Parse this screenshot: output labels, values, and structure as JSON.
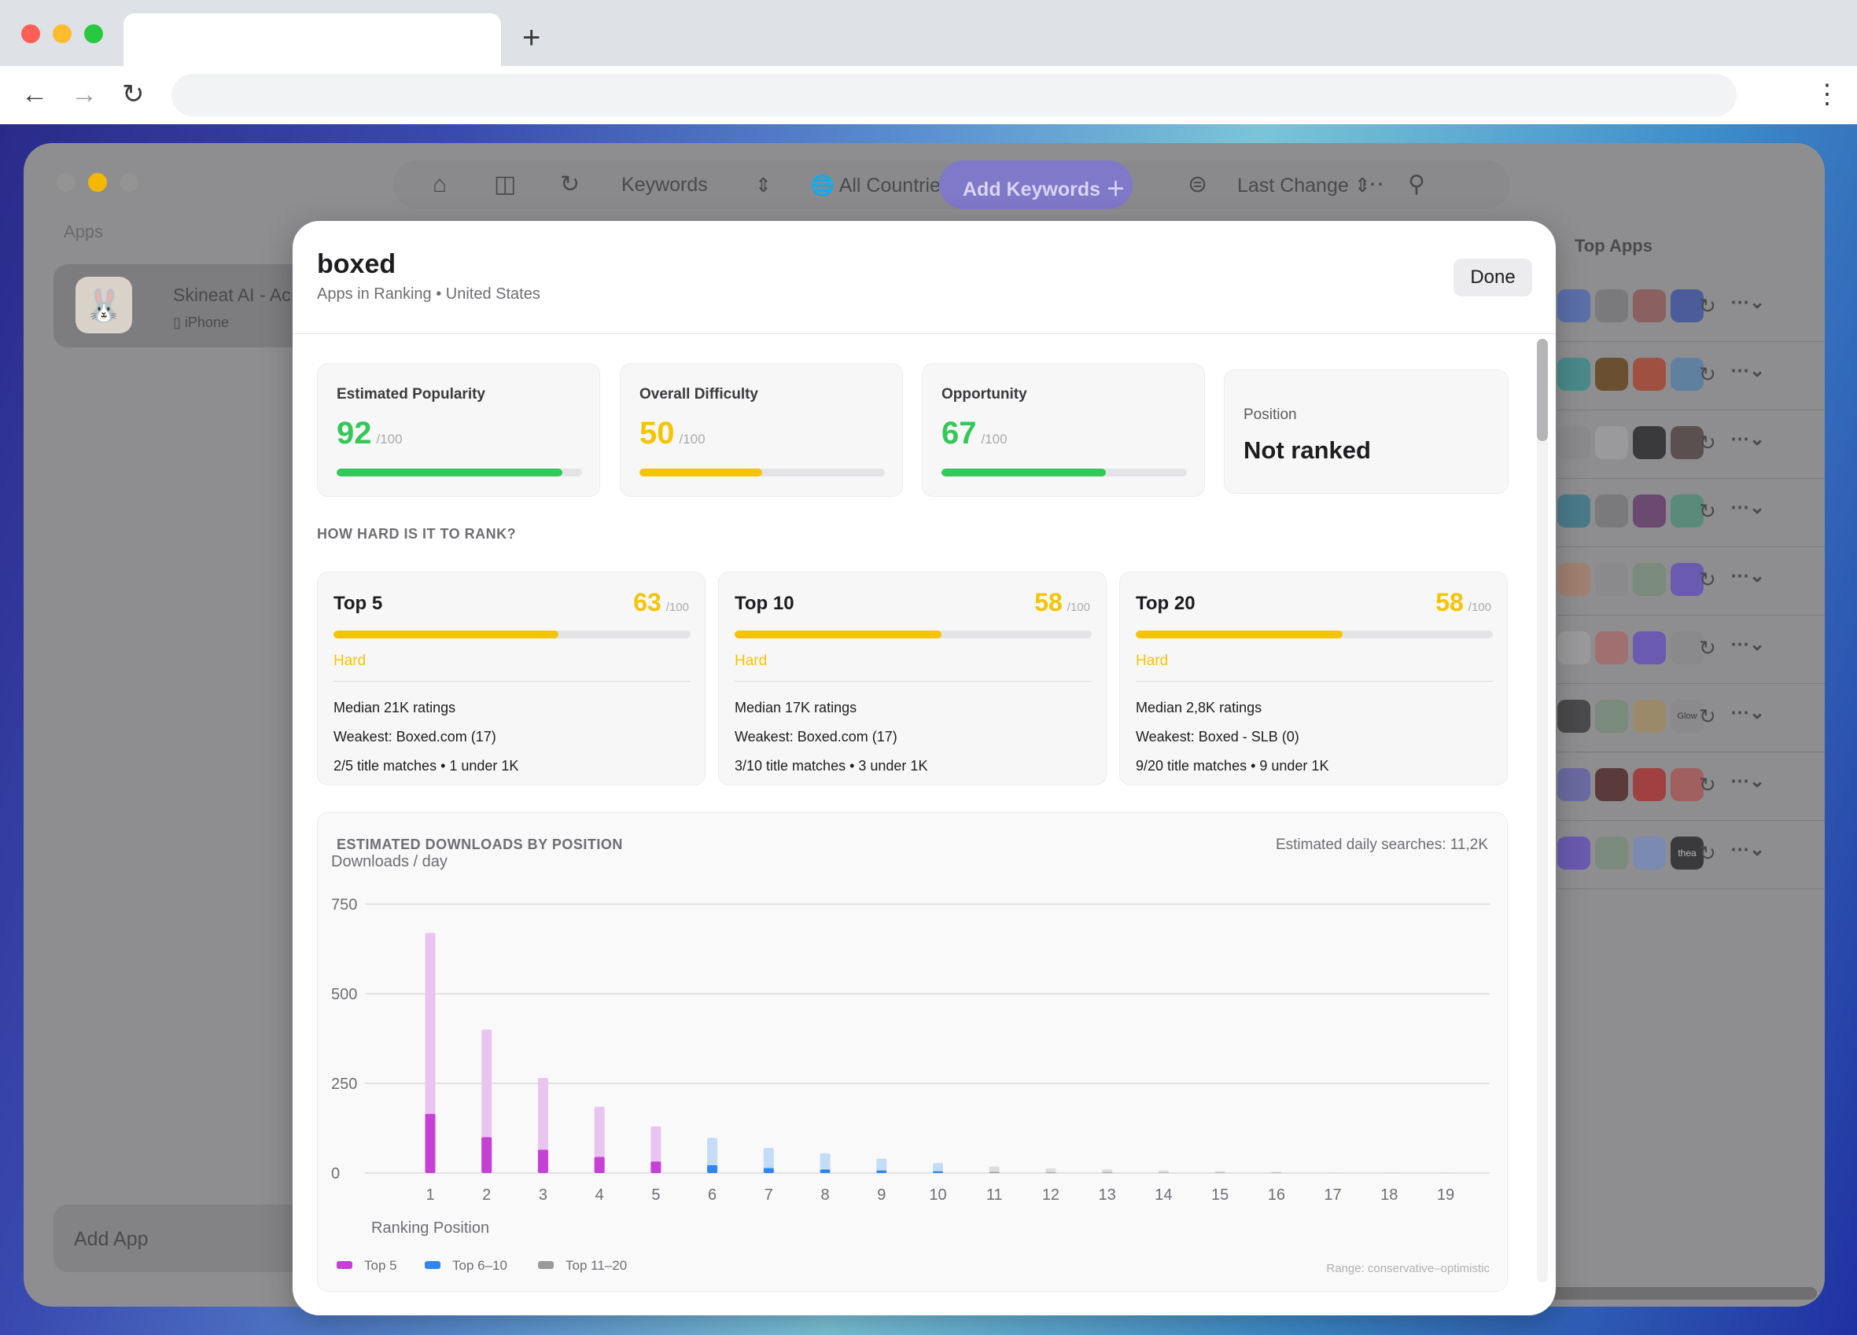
{
  "browser": {
    "new_tab": "+",
    "menu": "⋮"
  },
  "app": {
    "sidebar_title": "Apps",
    "app_item": {
      "name": "Skineat AI - Ac...",
      "device": "iPhone"
    },
    "add_app": "Add App",
    "toolbar": {
      "keywords": "Keywords",
      "countries": "All Countries",
      "add_keywords": "Add Keywords",
      "last_change": "Last Change"
    },
    "top_apps_title": "Top Apps",
    "row_extra_labels": {
      "glow": "Glow",
      "thea": "thea"
    }
  },
  "modal": {
    "title": "boxed",
    "subtitle": "Apps in Ranking • United States",
    "done": "Done",
    "max_suffix": "/100",
    "metrics": [
      {
        "label": "Estimated Popularity",
        "value": "92",
        "fill": 0.92,
        "color": "#34c759"
      },
      {
        "label": "Overall Difficulty",
        "value": "50",
        "fill": 0.5,
        "color": "#f5c400"
      },
      {
        "label": "Opportunity",
        "value": "67",
        "fill": 0.67,
        "color": "#34c759"
      }
    ],
    "position": {
      "label": "Position",
      "value": "Not ranked"
    },
    "rank_section_title": "HOW HARD IS IT TO RANK?",
    "rank_cards": [
      {
        "title": "Top 5",
        "score": "63",
        "fill": 0.63,
        "level": "Hard",
        "median": "Median 21K ratings",
        "weakest": "Weakest: Boxed.com (17)",
        "matches": "2/5 title matches • 1 under 1K"
      },
      {
        "title": "Top 10",
        "score": "58",
        "fill": 0.58,
        "level": "Hard",
        "median": "Median 17K ratings",
        "weakest": "Weakest: Boxed.com (17)",
        "matches": "3/10 title matches • 3 under 1K"
      },
      {
        "title": "Top 20",
        "score": "58",
        "fill": 0.58,
        "level": "Hard",
        "median": "Median 2,8K ratings",
        "weakest": "Weakest: Boxed - SLB (0)",
        "matches": "9/20 title matches • 9 under 1K"
      }
    ],
    "downloads": {
      "title": "ESTIMATED DOWNLOADS BY POSITION",
      "daily_searches": "Estimated daily searches: 11,2K",
      "range_note": "Range: conservative–optimistic"
    }
  },
  "chart_data": {
    "type": "bar",
    "ylabel": "Downloads / day",
    "xlabel": "Ranking Position",
    "ylim": [
      0,
      750
    ],
    "yticks": [
      0,
      250,
      500,
      750
    ],
    "grid": true,
    "categories": [
      "1",
      "2",
      "3",
      "4",
      "5",
      "6",
      "7",
      "8",
      "9",
      "10",
      "11",
      "12",
      "13",
      "14",
      "15",
      "16",
      "17",
      "18",
      "19"
    ],
    "series": [
      {
        "name": "Top 5",
        "color": "#c541d6",
        "positions": [
          1,
          2,
          3,
          4,
          5
        ],
        "conservative": [
          165,
          100,
          65,
          45,
          32
        ],
        "optimistic": [
          670,
          400,
          265,
          185,
          130
        ]
      },
      {
        "name": "Top 6–10",
        "color": "#2f86f0",
        "positions": [
          6,
          7,
          8,
          9,
          10
        ],
        "conservative": [
          22,
          14,
          10,
          7,
          5
        ],
        "optimistic": [
          98,
          70,
          55,
          40,
          28
        ]
      },
      {
        "name": "Top 11–20",
        "color": "#9a9a9c",
        "positions": [
          11,
          12,
          13,
          14,
          15,
          16,
          17,
          18,
          19
        ],
        "conservative": [
          3,
          2,
          2,
          1,
          1,
          1,
          0,
          0,
          0
        ],
        "optimistic": [
          18,
          13,
          10,
          7,
          5,
          3,
          2,
          2,
          1
        ]
      }
    ],
    "legend_position": "bottom-left"
  }
}
